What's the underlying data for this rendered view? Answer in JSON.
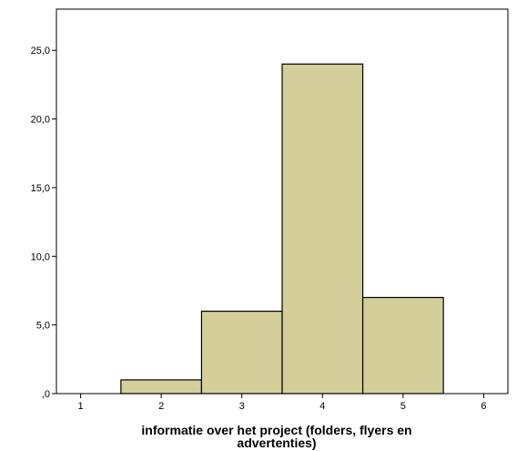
{
  "chart_data": {
    "type": "bar",
    "xlabel_lines": [
      "informatie over het project (folders, flyers en",
      "advertenties)"
    ],
    "ylabel": "",
    "x_ticks": [
      "1",
      "2",
      "3",
      "4",
      "5",
      "6"
    ],
    "y_ticks": [
      ",0",
      "5,0",
      "10,0",
      "15,0",
      "20,0",
      "25,0"
    ],
    "xlim": [
      0.7,
      6.3
    ],
    "ylim": [
      0,
      28
    ],
    "categories": [
      "2",
      "3",
      "4",
      "5"
    ],
    "bins": [
      [
        1.5,
        2.5
      ],
      [
        2.5,
        3.5
      ],
      [
        3.5,
        4.5
      ],
      [
        4.5,
        5.5
      ]
    ],
    "values": [
      1,
      6,
      24,
      7
    ],
    "colors": {
      "bar_fill": "#d3ce9a",
      "bar_stroke": "#000000",
      "plot_border": "#000000",
      "background": "#ffffff"
    },
    "grid": false,
    "legend": "none"
  }
}
